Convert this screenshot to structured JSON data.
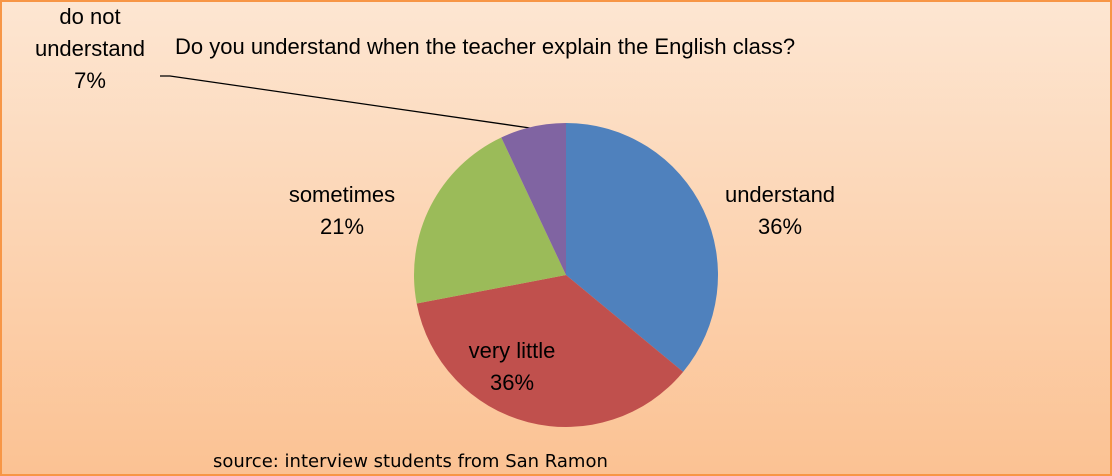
{
  "chart_data": {
    "type": "pie",
    "title": "Do you understand when the teacher explain the English class?",
    "categories": [
      "understand",
      "very little",
      "sometimes",
      "do not understand"
    ],
    "values": [
      36,
      36,
      21,
      7
    ],
    "value_labels": [
      "36%",
      "36%",
      "21%",
      "7%"
    ],
    "colors": [
      "#4f81bd",
      "#c0504d",
      "#9bbb59",
      "#8064a2"
    ],
    "source": "source: interview students from San Ramon"
  }
}
